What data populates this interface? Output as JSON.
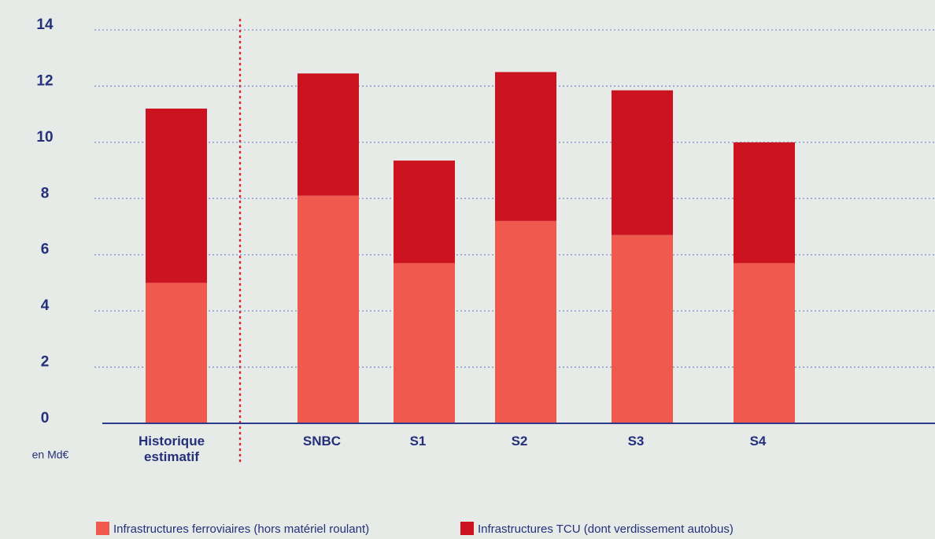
{
  "chart_data": {
    "type": "stacked_bar",
    "y_label": "en Md€",
    "categories": [
      "Historique estimatif",
      "SNBC",
      "S1",
      "S2",
      "S3",
      "S4"
    ],
    "series": [
      {
        "name": "Infrastructures ferroviaires (hors matériel roulant)",
        "color": "#f05a4e",
        "values": [
          5.0,
          8.1,
          5.7,
          7.2,
          6.7,
          5.7
        ]
      },
      {
        "name": "Infrastructures TCU (dont verdissement autobus)",
        "color": "#cc1421",
        "values": [
          6.2,
          4.35,
          3.65,
          5.3,
          5.15,
          4.3
        ]
      }
    ],
    "ylim": [
      0,
      14
    ],
    "yticks": [
      0,
      2,
      4,
      6,
      8,
      10,
      12,
      14
    ],
    "grid": true,
    "legend": "bottom"
  }
}
